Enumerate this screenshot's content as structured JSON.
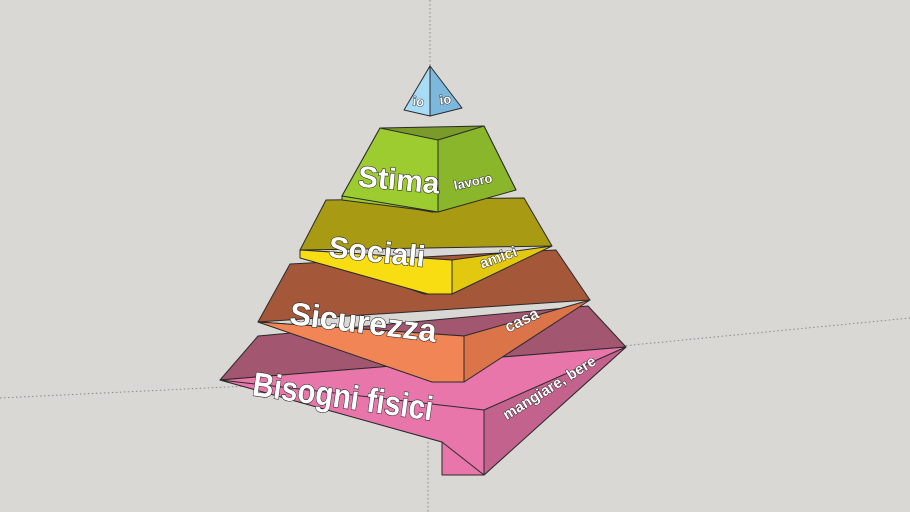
{
  "pyramid": {
    "levels": [
      {
        "id": "bisogni-fisici",
        "label": "Bisogni fisici",
        "side_label": "mangiare, bere",
        "colors": {
          "top": "#a2566f",
          "front": "#e876aa",
          "side": "#c4628e"
        }
      },
      {
        "id": "sicurezza",
        "label": "Sicurezza",
        "side_label": "casa",
        "colors": {
          "top": "#a5573a",
          "front": "#f28555",
          "side": "#dc744a"
        }
      },
      {
        "id": "sociali",
        "label": "Sociali",
        "side_label": "amici",
        "colors": {
          "top": "#a89a12",
          "front": "#f8dd12",
          "side": "#e2c80e"
        }
      },
      {
        "id": "stima",
        "label": "Stima",
        "side_label": "lavoro",
        "colors": {
          "top": "#7a9a2a",
          "front": "#9ccc30",
          "side": "#89b62a"
        }
      },
      {
        "id": "io",
        "label": "io",
        "side_label": "io",
        "colors": {
          "top": "#86c4e6",
          "front": "#a8dcf6",
          "side": "#7cb8dc"
        }
      }
    ]
  },
  "scene": {
    "background": "#d9d8d5",
    "axis_color": "#8a8a8a"
  }
}
